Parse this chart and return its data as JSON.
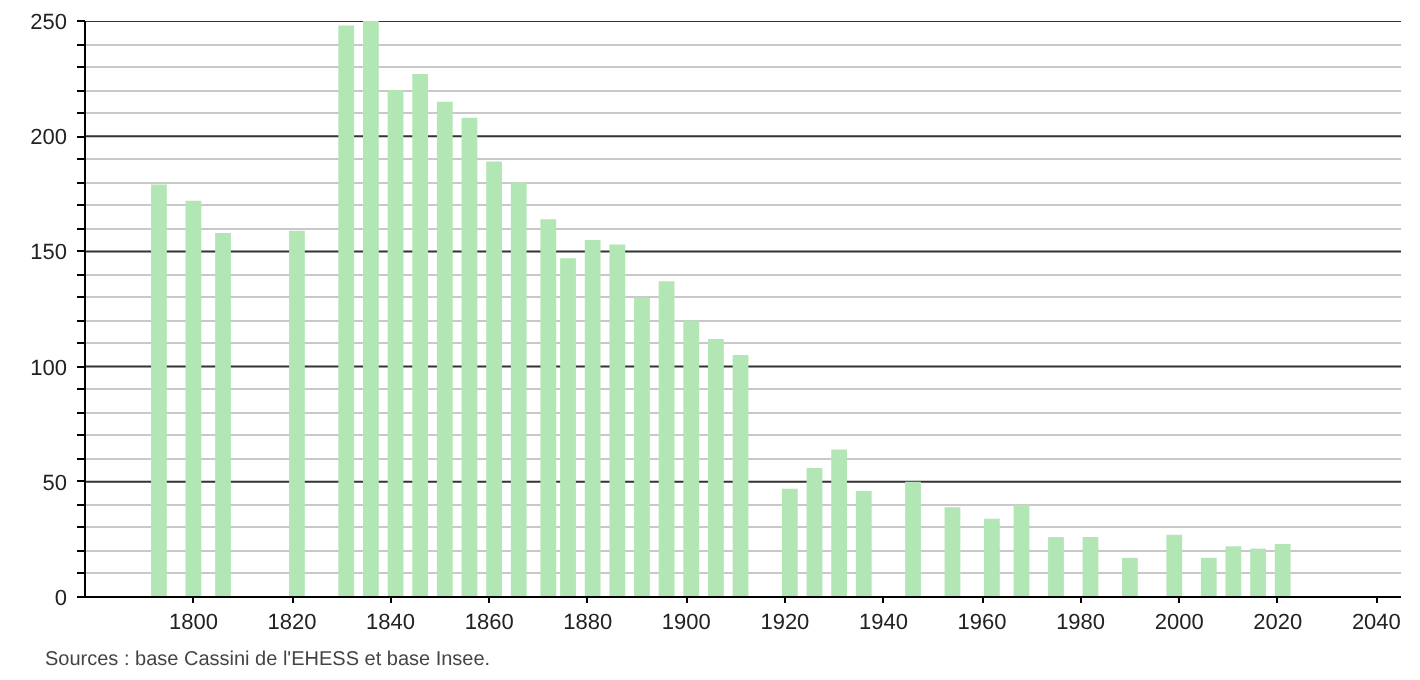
{
  "chart_data": {
    "type": "bar",
    "x": [
      1793,
      1800,
      1806,
      1821,
      1831,
      1836,
      1841,
      1846,
      1851,
      1856,
      1861,
      1866,
      1872,
      1876,
      1881,
      1886,
      1891,
      1896,
      1901,
      1906,
      1911,
      1921,
      1926,
      1931,
      1936,
      1946,
      1954,
      1962,
      1968,
      1975,
      1982,
      1990,
      1999,
      2006,
      2011,
      2016,
      2021
    ],
    "values": [
      179,
      172,
      158,
      159,
      248,
      250,
      220,
      227,
      215,
      208,
      189,
      180,
      164,
      147,
      155,
      153,
      130,
      137,
      120,
      112,
      105,
      47,
      56,
      64,
      46,
      50,
      39,
      34,
      40,
      26,
      26,
      17,
      27,
      17,
      22,
      21,
      23
    ],
    "color": "#b3e6b5",
    "xlim": [
      1778,
      2045
    ],
    "xticks": [
      1800,
      1820,
      1840,
      1860,
      1880,
      1900,
      1920,
      1940,
      1960,
      1980,
      2000,
      2020,
      2040
    ],
    "ylim": [
      0,
      250
    ],
    "yticks": [
      0,
      {
        "value": 10,
        "label": null
      },
      {
        "value": 20,
        "label": null
      },
      {
        "value": 30,
        "label": null
      },
      {
        "value": 40,
        "label": null
      },
      50,
      {
        "value": 60,
        "label": null
      },
      {
        "value": 70,
        "label": null
      },
      {
        "value": 80,
        "label": null
      },
      {
        "value": 90,
        "label": null
      },
      100,
      {
        "value": 110,
        "label": null
      },
      {
        "value": 120,
        "label": null
      },
      {
        "value": 130,
        "label": null
      },
      {
        "value": 140,
        "label": null
      },
      150,
      {
        "value": 160,
        "label": null
      },
      {
        "value": 170,
        "label": null
      },
      {
        "value": 180,
        "label": null
      },
      {
        "value": 190,
        "label": null
      },
      200,
      {
        "value": 210,
        "label": null
      },
      {
        "value": 220,
        "label": null
      },
      {
        "value": 230,
        "label": null
      },
      {
        "value": 240,
        "label": null
      },
      250
    ],
    "grid": "y",
    "annotations": [
      "Sources : base Cassini de l'EHESS et base Insee."
    ]
  }
}
